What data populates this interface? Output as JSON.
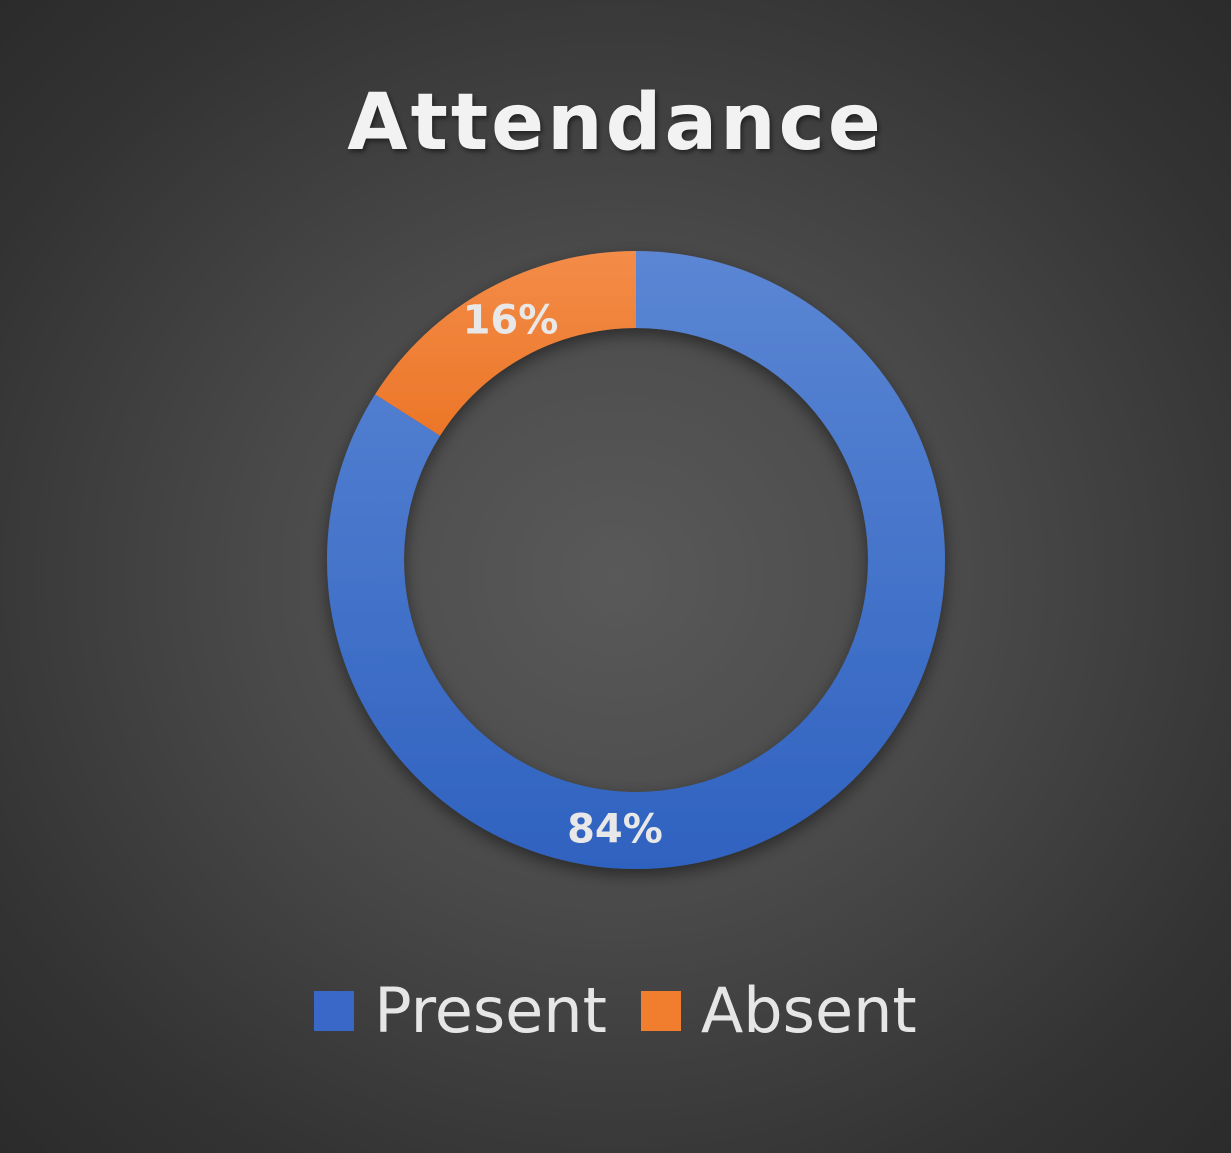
{
  "chart_data": {
    "type": "pie",
    "variant": "doughnut",
    "title": "Attendance",
    "series": [
      {
        "name": "Present",
        "value": 84,
        "label": "84%",
        "color": "#3a68c8"
      },
      {
        "name": "Absent",
        "value": 16,
        "label": "16%",
        "color": "#f07e2e"
      }
    ],
    "legend_position": "bottom",
    "background": "#4a4a4a"
  }
}
